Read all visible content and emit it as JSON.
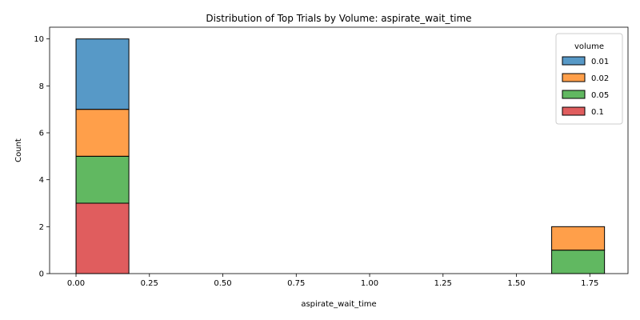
{
  "chart_data": {
    "type": "bar",
    "subtype": "stacked-histogram",
    "title": "Distribution of Top Trials by Volume: aspirate_wait_time",
    "xlabel": "aspirate_wait_time",
    "ylabel": "Count",
    "xlim": [
      -0.09,
      1.88
    ],
    "ylim": [
      0,
      10.5
    ],
    "xticks": [
      "0.00",
      "0.25",
      "0.50",
      "0.75",
      "1.00",
      "1.25",
      "1.50",
      "1.75"
    ],
    "yticks": [
      "0",
      "2",
      "4",
      "6",
      "8",
      "10"
    ],
    "bin_edges": [
      0.0,
      0.18,
      0.36,
      0.54,
      0.72,
      0.9,
      1.08,
      1.26,
      1.44,
      1.62,
      1.8
    ],
    "legend": {
      "title": "volume",
      "position": "top-right"
    },
    "series": [
      {
        "name": "0.01",
        "color": "#1f77b4",
        "counts": [
          3,
          0,
          0,
          0,
          0,
          0,
          0,
          0,
          0,
          0
        ]
      },
      {
        "name": "0.02",
        "color": "#ff7f0e",
        "counts": [
          2,
          0,
          0,
          0,
          0,
          0,
          0,
          0,
          0,
          1
        ]
      },
      {
        "name": "0.05",
        "color": "#2ca02c",
        "counts": [
          2,
          0,
          0,
          0,
          0,
          0,
          0,
          0,
          0,
          1
        ]
      },
      {
        "name": "0.1",
        "color": "#d62728",
        "counts": [
          3,
          0,
          0,
          0,
          0,
          0,
          0,
          0,
          0,
          0
        ]
      }
    ],
    "stack_order_bottom_to_top": [
      "0.1",
      "0.05",
      "0.02",
      "0.01"
    ],
    "grid": false
  }
}
